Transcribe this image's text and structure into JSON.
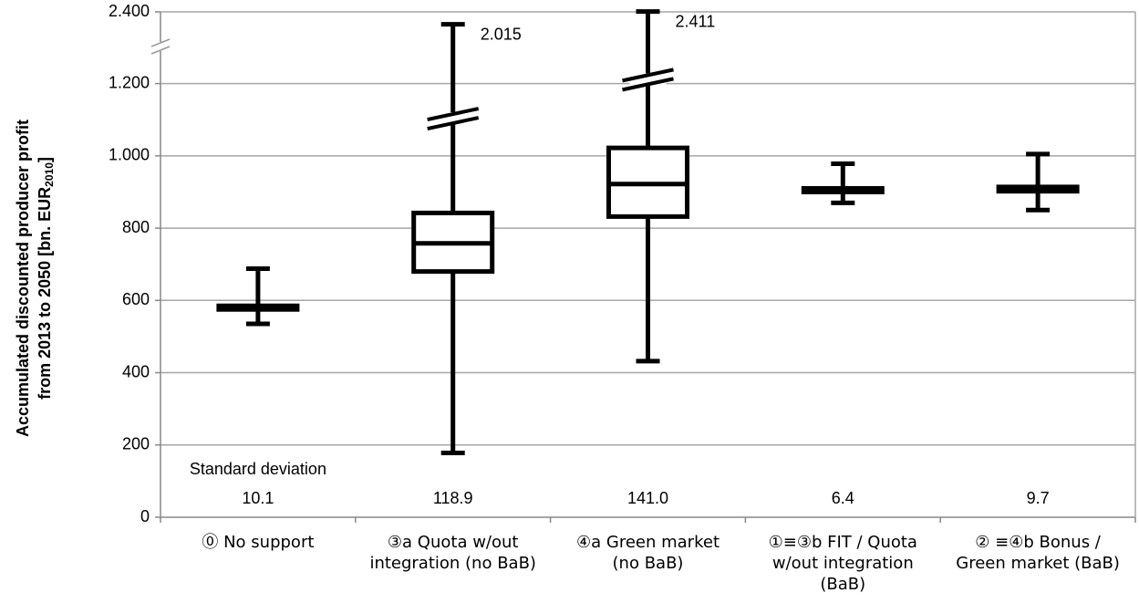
{
  "chart_data": {
    "type": "box",
    "y_label_lines": [
      "Accumulated discounted producer profit",
      "from 2013 to 2050 [bn. EUR"
    ],
    "y_label_sub": "2010",
    "y_label_end": "]",
    "categories": [
      [
        "⓪ No support"
      ],
      [
        "③a Quota w/out",
        "integration (no BaB)"
      ],
      [
        "④a Green market",
        "(no BaB)"
      ],
      [
        "①≡③b FIT / Quota",
        "w/out integration",
        "(BaB)"
      ],
      [
        "② ≡④b Bonus /",
        "Green market (BaB)"
      ]
    ],
    "boxes": [
      {
        "min": 535,
        "q1": 575,
        "median": 580,
        "q3": 585,
        "max": 688,
        "std": 10.1,
        "std_label": "10.1"
      },
      {
        "min": 178,
        "q1": 680,
        "median": 758,
        "q3": 842,
        "max": 2015,
        "max_label": "2.015",
        "std": 118.9,
        "std_label": "118.9"
      },
      {
        "min": 432,
        "q1": 832,
        "median": 922,
        "q3": 1022,
        "max": 2411,
        "max_label": "2.411",
        "std": 141.0,
        "std_label": "141.0"
      },
      {
        "min": 870,
        "q1": 900,
        "median": 905,
        "q3": 910,
        "max": 978,
        "std": 6.4,
        "std_label": "6.4"
      },
      {
        "min": 850,
        "q1": 902,
        "median": 908,
        "q3": 914,
        "max": 1005,
        "std": 9.7,
        "std_label": "9.7"
      }
    ],
    "std_title": "Standard deviation",
    "color": "#000000",
    "ylim": [
      0,
      2400
    ],
    "yticks": [
      0,
      200,
      400,
      600,
      800,
      {
        "value": 1000,
        "label": "1.000"
      },
      {
        "value": 1200,
        "label": "1.200"
      },
      {
        "value": 2400,
        "label": "2.400"
      }
    ],
    "axis_break": true,
    "grid": true
  }
}
